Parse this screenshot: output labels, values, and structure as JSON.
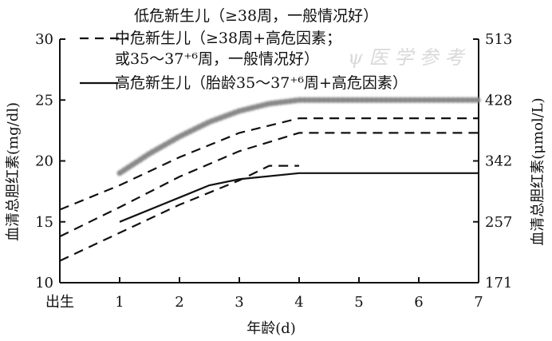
{
  "chart_data": {
    "type": "line",
    "xlabel": "年龄(d)",
    "ylabel": "血清总胆红素(mg/dl)",
    "y2label": "血清总胆红素(μmol/L)",
    "x_ticks": [
      {
        "value": 0,
        "label": "出生"
      },
      {
        "value": 1,
        "label": "1"
      },
      {
        "value": 2,
        "label": "2"
      },
      {
        "value": 3,
        "label": "3"
      },
      {
        "value": 4,
        "label": "4"
      },
      {
        "value": 5,
        "label": "5"
      },
      {
        "value": 6,
        "label": "6"
      },
      {
        "value": 7,
        "label": "7"
      }
    ],
    "y_ticks": [
      10,
      15,
      20,
      25,
      30
    ],
    "y2_ticks": [
      {
        "value": 10,
        "label": "171"
      },
      {
        "value": 15,
        "label": "257"
      },
      {
        "value": 20,
        "label": "342"
      },
      {
        "value": 25,
        "label": "428"
      },
      {
        "value": 30,
        "label": "513"
      }
    ],
    "xlim": [
      0,
      7
    ],
    "ylim": [
      10,
      30
    ],
    "legend_position": "top",
    "series": [
      {
        "name": "低危新生儿（≥38周，一般情况好）",
        "style": "dotted-blur",
        "color": "#888888",
        "points": [
          [
            1,
            19
          ],
          [
            1.5,
            20.6
          ],
          [
            2,
            22
          ],
          [
            2.5,
            23.2
          ],
          [
            3,
            24.1
          ],
          [
            3.5,
            24.7
          ],
          [
            4,
            25
          ],
          [
            5,
            25
          ],
          [
            6,
            25
          ],
          [
            7,
            25
          ]
        ]
      },
      {
        "name_lines": [
          "中危新生儿（≥38周+高危因素；",
          "或35～37⁺⁶周，一般情况好）"
        ],
        "style": "dashed",
        "color": "#111111",
        "curves": [
          [
            [
              0,
              16
            ],
            [
              1,
              18
            ],
            [
              2,
              20.3
            ],
            [
              3,
              22.3
            ],
            [
              4,
              23.5
            ],
            [
              5,
              23.5
            ],
            [
              6,
              23.5
            ],
            [
              7,
              23.5
            ]
          ],
          [
            [
              0,
              13.8
            ],
            [
              1,
              16.2
            ],
            [
              2,
              18.7
            ],
            [
              3,
              20.8
            ],
            [
              4,
              22.3
            ],
            [
              5,
              22.3
            ],
            [
              6,
              22.3
            ],
            [
              7,
              22.3
            ]
          ],
          [
            [
              0,
              11.8
            ],
            [
              1,
              14.1
            ],
            [
              2,
              16.4
            ],
            [
              3,
              18.4
            ],
            [
              3.5,
              19.6
            ],
            [
              4,
              19.6
            ]
          ]
        ]
      },
      {
        "name": "高危新生儿（胎龄35～37⁺⁶周+高危因素）",
        "style": "solid",
        "color": "#111111",
        "points": [
          [
            1,
            15
          ],
          [
            2,
            17
          ],
          [
            2.5,
            18
          ],
          [
            3,
            18.5
          ],
          [
            4,
            19
          ],
          [
            5,
            19
          ],
          [
            6,
            19
          ],
          [
            7,
            19
          ]
        ]
      }
    ]
  }
}
